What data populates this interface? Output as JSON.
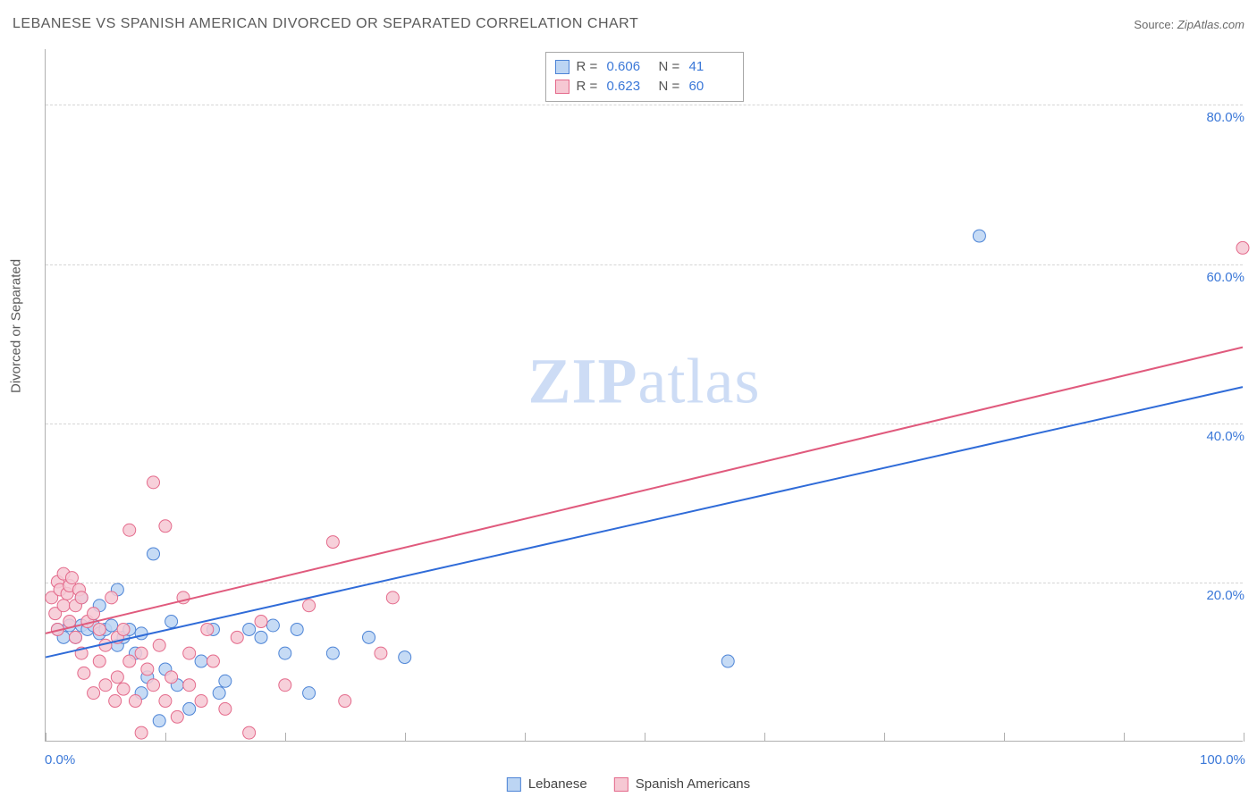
{
  "title": "LEBANESE VS SPANISH AMERICAN DIVORCED OR SEPARATED CORRELATION CHART",
  "source_label": "Source:",
  "source_value": "ZipAtlas.com",
  "y_axis_title": "Divorced or Separated",
  "watermark": {
    "zip": "ZIP",
    "atlas": "atlas"
  },
  "chart": {
    "type": "scatter",
    "xlim": [
      0,
      100
    ],
    "ylim": [
      0,
      87
    ],
    "x_ticks": [
      0,
      10,
      20,
      30,
      40,
      50,
      60,
      70,
      80,
      90,
      100
    ],
    "x_tick_labels": {
      "0": "0.0%",
      "100": "100.0%"
    },
    "y_gridlines": [
      20,
      40,
      60,
      80
    ],
    "y_tick_labels": {
      "20": "20.0%",
      "40": "40.0%",
      "60": "60.0%",
      "80": "80.0%"
    },
    "background_color": "#ffffff",
    "grid_color": "#d5d5d5",
    "axis_color": "#b0b0b0",
    "tick_label_color": "#3b78d8",
    "marker_radius": 7,
    "marker_stroke_width": 1,
    "series": [
      {
        "key": "lebanese",
        "label": "Lebanese",
        "fill": "#bcd5f3",
        "stroke": "#4d84d6",
        "R": "0.606",
        "N": "41",
        "line": {
          "x1": 0,
          "y1": 10.5,
          "x2": 100,
          "y2": 44.5,
          "color": "#2f6bd8",
          "width": 2
        },
        "points": [
          [
            1,
            14
          ],
          [
            1.5,
            13
          ],
          [
            2,
            14.5
          ],
          [
            2.5,
            13
          ],
          [
            3,
            14.5
          ],
          [
            3,
            18
          ],
          [
            3.5,
            14
          ],
          [
            4,
            14.5
          ],
          [
            4.5,
            17
          ],
          [
            4.5,
            13.5
          ],
          [
            5,
            14
          ],
          [
            5.5,
            14.5
          ],
          [
            6,
            19
          ],
          [
            6,
            12
          ],
          [
            6.5,
            13
          ],
          [
            7,
            14
          ],
          [
            7.5,
            11
          ],
          [
            8,
            13.5
          ],
          [
            8,
            6
          ],
          [
            8.5,
            8
          ],
          [
            9,
            23.5
          ],
          [
            9.5,
            2.5
          ],
          [
            10,
            9
          ],
          [
            10.5,
            15
          ],
          [
            11,
            7
          ],
          [
            12,
            4
          ],
          [
            13,
            10
          ],
          [
            14,
            14
          ],
          [
            14.5,
            6
          ],
          [
            15,
            7.5
          ],
          [
            17,
            14
          ],
          [
            18,
            13
          ],
          [
            19,
            14.5
          ],
          [
            20,
            11
          ],
          [
            21,
            14
          ],
          [
            22,
            6
          ],
          [
            24,
            11
          ],
          [
            27,
            13
          ],
          [
            30,
            10.5
          ],
          [
            57,
            10
          ],
          [
            78,
            63.5
          ]
        ]
      },
      {
        "key": "spanish",
        "label": "Spanish Americans",
        "fill": "#f6c8d3",
        "stroke": "#e46a8b",
        "R": "0.623",
        "N": "60",
        "line": {
          "x1": 0,
          "y1": 13.5,
          "x2": 100,
          "y2": 49.5,
          "color": "#e05a7d",
          "width": 2
        },
        "points": [
          [
            0.5,
            18
          ],
          [
            0.8,
            16
          ],
          [
            1,
            20
          ],
          [
            1,
            14
          ],
          [
            1.2,
            19
          ],
          [
            1.5,
            21
          ],
          [
            1.5,
            17
          ],
          [
            1.8,
            18.5
          ],
          [
            2,
            19.5
          ],
          [
            2,
            15
          ],
          [
            2.2,
            20.5
          ],
          [
            2.5,
            17
          ],
          [
            2.5,
            13
          ],
          [
            2.8,
            19
          ],
          [
            3,
            18
          ],
          [
            3,
            11
          ],
          [
            3.2,
            8.5
          ],
          [
            3.5,
            15
          ],
          [
            4,
            16
          ],
          [
            4,
            6
          ],
          [
            4.5,
            14
          ],
          [
            4.5,
            10
          ],
          [
            5,
            12
          ],
          [
            5,
            7
          ],
          [
            5.5,
            18
          ],
          [
            5.8,
            5
          ],
          [
            6,
            13
          ],
          [
            6,
            8
          ],
          [
            6.5,
            14
          ],
          [
            6.5,
            6.5
          ],
          [
            7,
            26.5
          ],
          [
            7,
            10
          ],
          [
            7.5,
            5
          ],
          [
            8,
            11
          ],
          [
            8,
            1
          ],
          [
            8.5,
            9
          ],
          [
            9,
            32.5
          ],
          [
            9,
            7
          ],
          [
            9.5,
            12
          ],
          [
            10,
            5
          ],
          [
            10,
            27
          ],
          [
            10.5,
            8
          ],
          [
            11,
            3
          ],
          [
            11.5,
            18
          ],
          [
            12,
            7
          ],
          [
            12,
            11
          ],
          [
            13,
            5
          ],
          [
            13.5,
            14
          ],
          [
            14,
            10
          ],
          [
            15,
            4
          ],
          [
            16,
            13
          ],
          [
            17,
            1
          ],
          [
            18,
            15
          ],
          [
            20,
            7
          ],
          [
            22,
            17
          ],
          [
            24,
            25
          ],
          [
            25,
            5
          ],
          [
            28,
            11
          ],
          [
            29,
            18
          ],
          [
            100,
            62
          ]
        ]
      }
    ]
  },
  "legend_top": {
    "r_label": "R =",
    "n_label": "N ="
  }
}
